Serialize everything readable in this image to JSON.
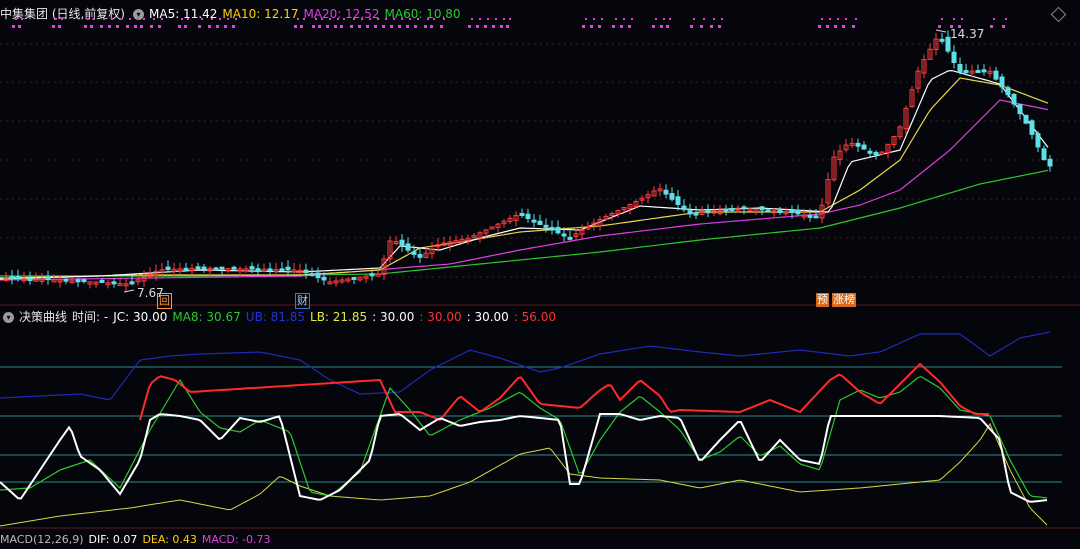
{
  "price_header": {
    "title": "中集集团 (日线,前复权)",
    "indicators": [
      {
        "text": "MA5: 11.42",
        "color": "#ffffff"
      },
      {
        "text": "MA10: 12.17",
        "color": "#ffd200"
      },
      {
        "text": "MA20: 12.52",
        "color": "#e040e0"
      },
      {
        "text": "MA60: 10.80",
        "color": "#2dc82d"
      }
    ]
  },
  "price_chart": {
    "high_label": "14.37",
    "low_label": "7.67",
    "markers": [
      {
        "label": "回",
        "color": "#ff9a3c",
        "border": "#ff9a3c"
      },
      {
        "label": "财",
        "color": "#9fd2ff",
        "border": "#3a78d0"
      },
      {
        "label": "预",
        "color": "#ffffff",
        "border": "#d76a1a"
      },
      {
        "label": "涨榜",
        "color": "#ffffff",
        "border": "#d76a1a"
      }
    ]
  },
  "decision_header": {
    "title": "决策曲线",
    "time_label": "时间: -",
    "items": [
      {
        "text": "JC: 30.00",
        "color": "#ffffff"
      },
      {
        "text": "MA8: 30.67",
        "color": "#2dc82d"
      },
      {
        "text": "UB: 81.85",
        "color": "#2233d6"
      },
      {
        "text": "LB: 21.85",
        "color": "#e8e845"
      },
      {
        "text": ": 30.00",
        "color": "#ffffff"
      },
      {
        "text": ": 30.00",
        "color": "#ff3030"
      },
      {
        "text": ": 30.00",
        "color": "#ffffff"
      },
      {
        "text": ": 56.00",
        "color": "#ff3030"
      }
    ]
  },
  "macd_header": {
    "title": "MACD(12,26,9)",
    "items": [
      {
        "text": "DIF: 0.07",
        "color": "#ffffff"
      },
      {
        "text": "DEA: 0.43",
        "color": "#ffd200"
      },
      {
        "text": "MACD: -0.73",
        "color": "#e040e0"
      }
    ]
  },
  "colors": {
    "background": "#05050c",
    "bull": "#ff3b3b",
    "bear": "#5ee0e6",
    "ma5": "#ffffff",
    "ma10": "#e8d84a",
    "ma20": "#e040e0",
    "ma60": "#2dc82d",
    "grid": "#3c1e1e",
    "level": "#2a8c8c"
  }
}
